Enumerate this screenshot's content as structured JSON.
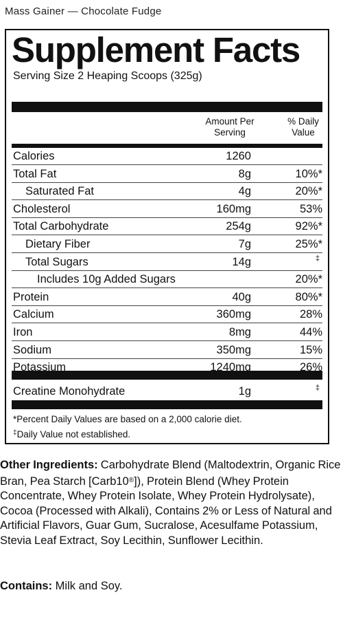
{
  "product_title": "Mass Gainer — Chocolate Fudge",
  "panel": {
    "title": "Supplement Facts",
    "serving_size": "Serving Size 2 Heaping Scoops (325g)",
    "header_amount": "Amount Per\nServing",
    "header_dv": "% Daily\nValue",
    "rows": [
      {
        "label": "Calories",
        "amount": "1260",
        "dv": ""
      },
      {
        "label": "Total Fat",
        "amount": "8g",
        "dv": "10%*"
      },
      {
        "label": "Saturated Fat",
        "amount": "4g",
        "dv": "20%*"
      },
      {
        "label": "Cholesterol",
        "amount": "160mg",
        "dv": "53%"
      },
      {
        "label": "Total Carbohydrate",
        "amount": "254g",
        "dv": "92%*"
      },
      {
        "label": "Dietary Fiber",
        "amount": "7g",
        "dv": "25%*"
      },
      {
        "label": "Total Sugars",
        "amount": "14g",
        "dv": "‡"
      },
      {
        "label": "Includes 10g Added Sugars",
        "amount": "",
        "dv": "20%*"
      },
      {
        "label": "Protein",
        "amount": "40g",
        "dv": "80%*"
      },
      {
        "label": "Calcium",
        "amount": "360mg",
        "dv": "28%"
      },
      {
        "label": "Iron",
        "amount": "8mg",
        "dv": "44%"
      },
      {
        "label": "Sodium",
        "amount": "350mg",
        "dv": "15%"
      },
      {
        "label": "Potassium",
        "amount": "1240mg",
        "dv": "26%"
      }
    ],
    "creatine": {
      "label": "Creatine Monohydrate",
      "amount": "1g",
      "dv": "‡"
    },
    "footnote_1": "*Percent Daily Values are based on a 2,000 calorie diet.",
    "footnote_2_mark": "‡",
    "footnote_2": "Daily Value not established."
  },
  "ingredients": {
    "label": "Other Ingredients:",
    "text_1": " Carbohydrate Blend (Maltodextrin, Organic Rice Bran, Pea Starch [Carb10",
    "reg": "®",
    "text_2": "]), Protein Blend (Whey Protein Concentrate, Whey Protein Isolate, Whey Protein Hydrolysate), Cocoa (Processed with Alkali), Contains 2% or Less of Natural and Artificial Flavors, Guar Gum, Sucralose, Acesulfame Potassium, Stevia Leaf Extract, Soy Lecithin, Sunflower Lecithin."
  },
  "contains": {
    "label": "Contains:",
    "text": " Milk and Soy."
  }
}
